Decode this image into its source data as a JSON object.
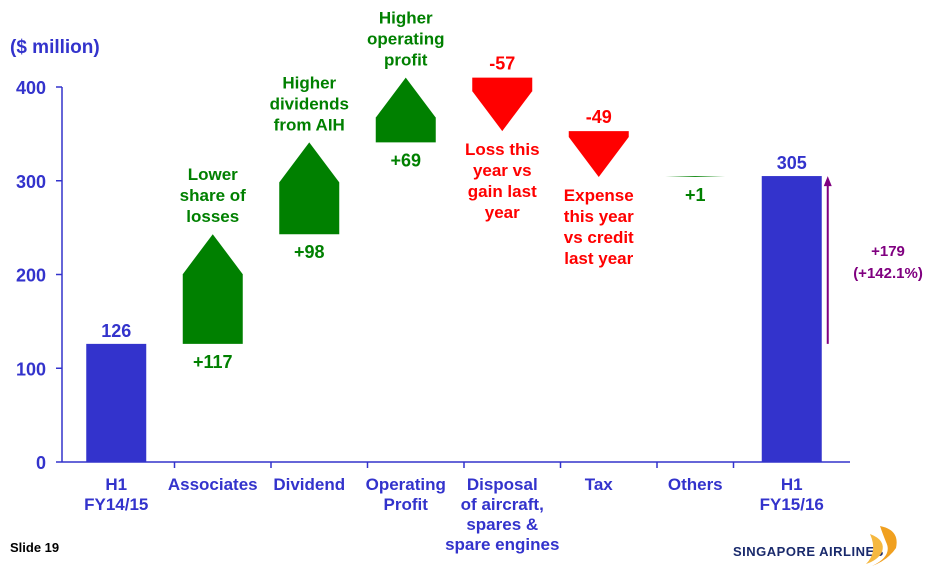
{
  "chart_data": {
    "type": "waterfall",
    "y_label": "($ million)",
    "categories": [
      "H1\nFY14/15",
      "Associates",
      "Dividend",
      "Operating\nProfit",
      "Disposal\nof aircraft,\nspares &\nspare engines",
      "Tax",
      "Others",
      "H1\nFY15/16"
    ],
    "values": [
      126,
      117,
      98,
      69,
      -57,
      -49,
      1,
      305
    ],
    "value_labels": [
      "126",
      "+117",
      "+98",
      "+69",
      "-57",
      "-49",
      "+1",
      "305"
    ],
    "totals": [
      true,
      false,
      false,
      false,
      false,
      false,
      false,
      true
    ],
    "annotations": [
      null,
      "Lower\nshare of\nlosses",
      "Higher\ndividends\nfrom AIH",
      "Higher\noperating\nprofit",
      "Loss this\nyear vs\ngain last\nyear",
      "Expense\nthis year\nvs credit\nlast year",
      null,
      null
    ],
    "change_label": "+179\n(+142.1%)",
    "colors": {
      "total": "#3333cc",
      "increase": "#008000",
      "decrease": "#ff0000",
      "change": "#800080"
    },
    "ylim": [
      0,
      400
    ],
    "yticks": [
      0,
      100,
      200,
      300,
      400
    ]
  },
  "footer": {
    "slide": "Slide 19",
    "logo": "SINGAPORE AIRLINES"
  }
}
